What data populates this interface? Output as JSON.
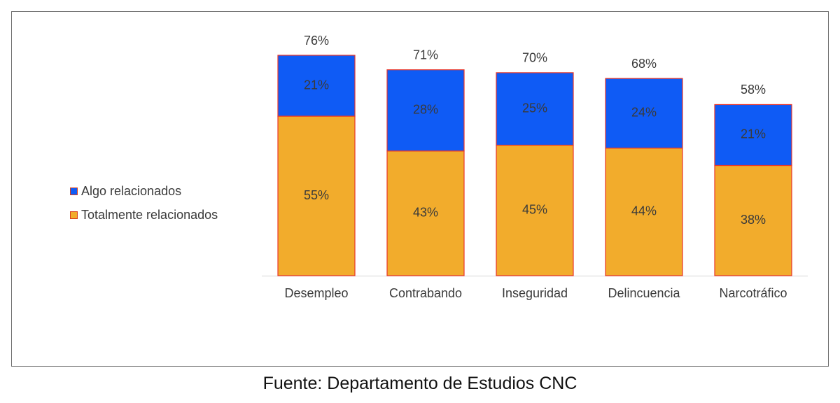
{
  "chart_data": {
    "type": "bar",
    "stacked": true,
    "categories": [
      "Desempleo",
      "Contrabando",
      "Inseguridad",
      "Delincuencia",
      "Narcotráfico"
    ],
    "series": [
      {
        "name": "Totalmente relacionados",
        "values": [
          55,
          43,
          45,
          44,
          38
        ],
        "labels": [
          "55%",
          "43%",
          "45%",
          "44%",
          "38%"
        ],
        "color": "#f2ac2c"
      },
      {
        "name": "Algo relacionados",
        "values": [
          21,
          28,
          25,
          24,
          21
        ],
        "labels": [
          "21%",
          "28%",
          "25%",
          "24%",
          "21%"
        ],
        "color": "#0f5bf5"
      }
    ],
    "totals": [
      76,
      71,
      70,
      68,
      58
    ],
    "total_labels": [
      "76%",
      "71%",
      "70%",
      "68%",
      "58%"
    ],
    "ylim": [
      0,
      76
    ],
    "legend_position": "left",
    "bar_edge_color": "#e8362a"
  },
  "legend": {
    "items": [
      {
        "label": "Algo relacionados",
        "color": "#0f5bf5"
      },
      {
        "label": "Totalmente relacionados",
        "color": "#f2ac2c"
      }
    ]
  },
  "source": "Fuente: Departamento de Estudios CNC"
}
